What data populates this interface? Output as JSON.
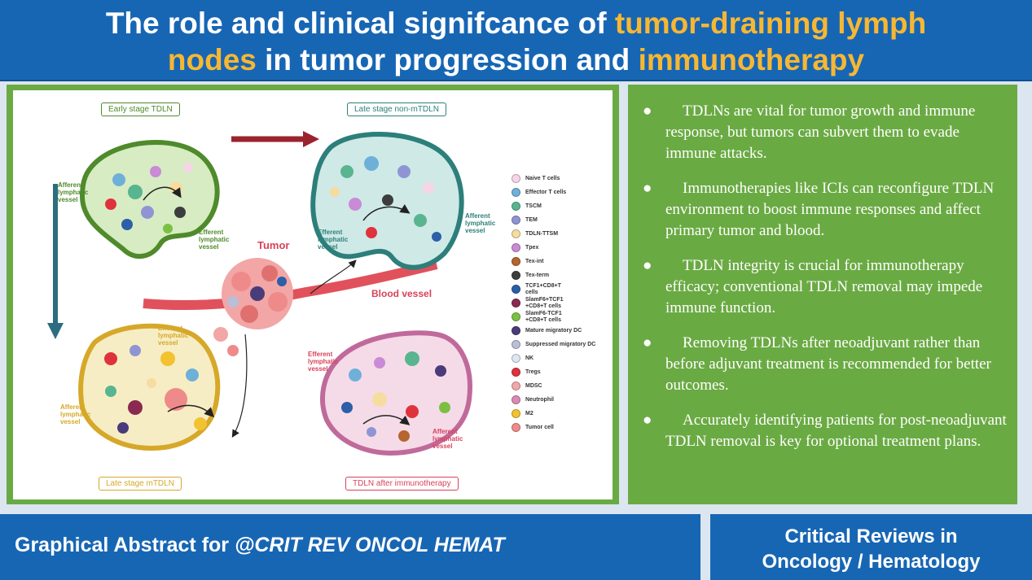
{
  "title": {
    "line1_part1": "The role and clinical signifcance of ",
    "line1_highlight": "tumor-draining lymph",
    "line2_highlight1": "nodes",
    "line2_part2": " in tumor progression and ",
    "line2_highlight2": "immunotherapy"
  },
  "colors": {
    "title_bg": "#1766b4",
    "highlight": "#f7b733",
    "panel_green": "#6aaa43",
    "footer_bg": "#1766b4"
  },
  "figure": {
    "stages": {
      "early": "Early stage TDLN",
      "late_non_m": "Late stage non-mTDLN",
      "late_m": "Late stage mTDLN",
      "after_immuno": "TDLN after immunotherapy"
    },
    "labels": {
      "tumor": "Tumor",
      "blood_vessel": "Blood vessel",
      "afferent_1": "Afferent\nlymphatic\nvessel",
      "efferent_1": "Efferent\nlymphatic\nvessel",
      "efferent_2": "Efferent\nlymphatic\nvessel",
      "afferent_2": "Afferent\nlymphatic\nvessel",
      "efferent_3": "Efferent\nlymphatic\nvessel",
      "efferent_4": "Efferent\nlymphatic\nvessel",
      "afferent_3": "Afferent\nlymphatic\nvessel",
      "afferent_4": "Afferent\nlymphatic\nvessel"
    },
    "legend": [
      {
        "label": "Naive T cells",
        "color": "#f6d5e6"
      },
      {
        "label": "Effector T cells",
        "color": "#6fb0d8"
      },
      {
        "label": "TSCM",
        "color": "#58b58f"
      },
      {
        "label": "TEM",
        "color": "#8f95d3"
      },
      {
        "label": "TDLN-TTSM",
        "color": "#f6dca0"
      },
      {
        "label": "Tpex",
        "color": "#c98ad6"
      },
      {
        "label": "Tex-int",
        "color": "#b5652f"
      },
      {
        "label": "Tex-term",
        "color": "#3d3d3d"
      },
      {
        "label": "TCF1+CD8+T\ncells",
        "color": "#2d5ea8"
      },
      {
        "label": "SlamF6+TCF1\n+CD8+T cells",
        "color": "#8a2a52"
      },
      {
        "label": "SlamF6-TCF1\n+CD8+T cells",
        "color": "#7bc043"
      },
      {
        "label": "Mature migratory DC",
        "color": "#4a3b7a"
      },
      {
        "label": "Suppressed migratory DC",
        "color": "#b8bfd6"
      },
      {
        "label": "NK",
        "color": "#dfe6f3"
      },
      {
        "label": "Tregs",
        "color": "#e0323c"
      },
      {
        "label": "MDSC",
        "color": "#f0a8a8"
      },
      {
        "label": "Neutrophil",
        "color": "#d98ab5"
      },
      {
        "label": "M2",
        "color": "#f2c230"
      },
      {
        "label": "Tumor cell",
        "color": "#ef8a8a"
      }
    ]
  },
  "bullets": [
    "TDLNs are vital for tumor growth and immune response, but tumors can subvert them to evade immune attacks.",
    "Immunotherapies like ICIs can reconfigure TDLN environment to boost immune responses and affect primary tumor and blood.",
    "TDLN integrity is crucial for immunotherapy efficacy; conventional TDLN removal may impede immune function.",
    "Removing TDLNs after neoadjuvant rather than before adjuvant treatment is recommended for better outcomes.",
    "Accurately identifying patients for post-neoadjuvant TDLN removal is key for optional treatment plans."
  ],
  "bullet_marker": "●",
  "footer": {
    "left_prefix": "Graphical Abstract for ",
    "left_italic": "@CRIT REV ONCOL HEMAT",
    "right_line1": "Critical Reviews in",
    "right_line2": "Oncology / Hematology"
  }
}
